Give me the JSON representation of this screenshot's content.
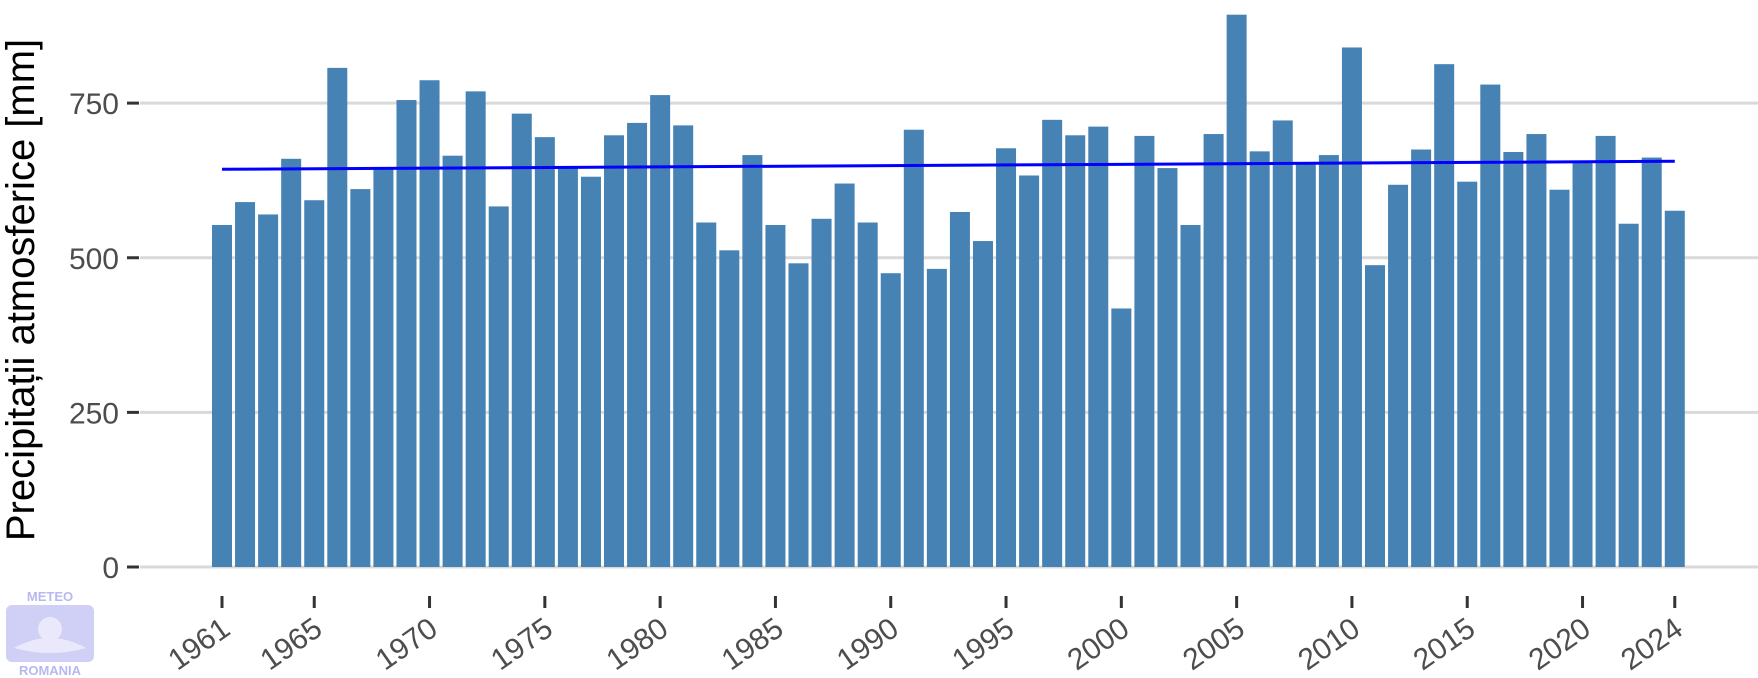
{
  "chart_data": {
    "type": "bar",
    "title": "",
    "xlabel": "",
    "ylabel": "Precipitații atmosferice [mm]",
    "ylim": [
      0,
      900
    ],
    "yticks": [
      0,
      250,
      500,
      750
    ],
    "ytick_labels": [
      "0",
      "250",
      "500",
      "750"
    ],
    "xticks": [
      1961,
      1965,
      1970,
      1975,
      1980,
      1985,
      1990,
      1995,
      2000,
      2005,
      2010,
      2015,
      2020,
      2024
    ],
    "xtick_labels": [
      "1961",
      "1965",
      "1970",
      "1975",
      "1980",
      "1985",
      "1990",
      "1995",
      "2000",
      "2005",
      "2010",
      "2015",
      "2020",
      "2024"
    ],
    "grid": "horizontal",
    "bar_color": "#4682b4",
    "trend_color": "#0000ff",
    "grid_color": "#d9d9d9",
    "categories": [
      1961,
      1962,
      1963,
      1964,
      1965,
      1966,
      1967,
      1968,
      1969,
      1970,
      1971,
      1972,
      1973,
      1974,
      1975,
      1976,
      1977,
      1978,
      1979,
      1980,
      1981,
      1982,
      1983,
      1984,
      1985,
      1986,
      1987,
      1988,
      1989,
      1990,
      1991,
      1992,
      1993,
      1994,
      1995,
      1996,
      1997,
      1998,
      1999,
      2000,
      2001,
      2002,
      2003,
      2004,
      2005,
      2006,
      2007,
      2008,
      2009,
      2010,
      2011,
      2012,
      2013,
      2014,
      2015,
      2016,
      2017,
      2018,
      2019,
      2020,
      2021,
      2022,
      2023,
      2024
    ],
    "values": [
      553,
      590,
      570,
      660,
      593,
      807,
      611,
      645,
      755,
      787,
      665,
      769,
      583,
      733,
      695,
      647,
      631,
      698,
      718,
      763,
      714,
      557,
      512,
      666,
      553,
      491,
      563,
      620,
      557,
      475,
      707,
      482,
      574,
      527,
      677,
      633,
      723,
      698,
      712,
      418,
      697,
      645,
      553,
      700,
      893,
      672,
      722,
      652,
      666,
      840,
      488,
      618,
      675,
      813,
      623,
      780,
      671,
      700,
      610,
      655,
      697,
      555,
      662,
      576
    ],
    "trend": {
      "x": [
        1961,
        2024
      ],
      "y": [
        643,
        656
      ]
    }
  },
  "logo": {
    "top": "METEO",
    "bottom": "ROMANIA"
  }
}
